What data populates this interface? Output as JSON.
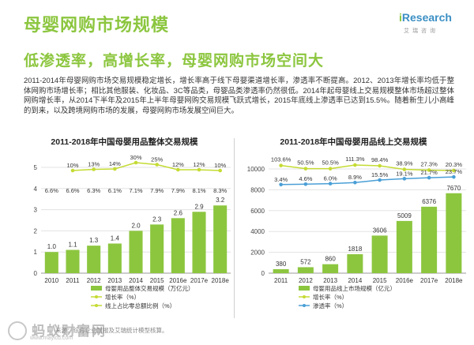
{
  "header": {
    "title": "母婴网购市场规模",
    "subtitle": "低渗透率，高增长率，母婴网购市场空间大",
    "logo_text": "Research",
    "logo_i": "i",
    "logo_sub": "艾瑞咨询"
  },
  "paragraph": "2011-2014年母婴网购市场交易规模稳定增长，增长率高于线下母婴渠道增长率，渗透率不断提高。2012、2013年增长率均低于整体网购市场增长率；相比其他服装、化妆品、3C等品类，母婴品类渗透率仍然很低。2014年起母婴线上交易规模整体市场超过整体网购增长率，从2014下半年及2015年上半年母婴网购交易规模飞跃式增长，2015年底线上渗透率已达到15.5%。随着新生儿小高峰的到来，以及跨境网购市场的发展，母婴网购市场发展空间巨大。",
  "colors": {
    "accent": "#8cc63f",
    "bar": "#8cc63f",
    "growth_line": "#c5db33",
    "penetration_line": "#4a9fd6"
  },
  "chart_data": [
    {
      "type": "bar",
      "title": "2011-2018年中国母婴用品整体交易规模",
      "categories": [
        "2010",
        "2011",
        "2012",
        "2013",
        "2014",
        "2015",
        "2016e",
        "2017e",
        "2018e"
      ],
      "ylim": [
        0,
        5
      ],
      "yticks": [
        "0",
        "1",
        "2",
        "3",
        "4",
        "5"
      ],
      "grid": true,
      "series": [
        {
          "name": "母婴用品整体交易规模（万亿元）",
          "kind": "bar",
          "values": [
            1.0,
            1.1,
            1.3,
            1.4,
            2.0,
            2.3,
            2.6,
            2.9,
            3.2
          ],
          "labels": [
            "1.0",
            "1.1",
            "1.3",
            "1.4",
            "2.0",
            "2.3",
            "2.6",
            "2.9",
            "3.2"
          ]
        },
        {
          "name": "增长率（%）",
          "kind": "line",
          "values": [
            null,
            10,
            13,
            14,
            30,
            25,
            12,
            12,
            10
          ],
          "labels": [
            "",
            "10%",
            "13%",
            "14%",
            "30%",
            "25%",
            "12%",
            "12%",
            "10%"
          ]
        },
        {
          "name": "线上占比零总额比例（%）",
          "kind": "line-labels",
          "values": [
            6.6,
            6.6,
            6.3,
            6.1,
            7.1,
            7.9,
            7.9,
            8.1,
            8.3
          ],
          "labels": [
            "6.6%",
            "6.6%",
            "6.3%",
            "6.1%",
            "7.1%",
            "7.9%",
            "7.9%",
            "8.1%",
            "8.3%"
          ]
        }
      ],
      "legend_position": "bottom"
    },
    {
      "type": "bar",
      "title": "2011-2018年中国母婴用品线上交易规模",
      "categories": [
        "2011",
        "2012",
        "2013",
        "2014",
        "2015",
        "2016e",
        "2017e",
        "2018e"
      ],
      "ylim": [
        0,
        10000
      ],
      "yticks": [
        "0",
        "2000",
        "4000",
        "6000",
        "8000",
        "10000"
      ],
      "grid": true,
      "series": [
        {
          "name": "母婴用品线上市场规模（亿元）",
          "kind": "bar",
          "values": [
            380,
            572,
            860,
            1818,
            3606,
            5009,
            6376,
            7670
          ],
          "labels": [
            "380",
            "572",
            "860",
            "1818",
            "3606",
            "5009",
            "6376",
            "7670"
          ]
        },
        {
          "name": "增长率（%）",
          "kind": "line",
          "values": [
            103.6,
            50.5,
            50.5,
            111.3,
            98.4,
            38.9,
            27.3,
            20.3
          ],
          "labels": [
            "103.6%",
            "50.5%",
            "50.5%",
            "111.3%",
            "98.4%",
            "38.9%",
            "27.3%",
            "20.3%"
          ]
        },
        {
          "name": "渗透率（%）",
          "kind": "line",
          "values": [
            3.4,
            4.6,
            6.0,
            8.9,
            15.5,
            19.1,
            21.7,
            23.7
          ],
          "labels": [
            "3.4%",
            "4.6%",
            "6.0%",
            "8.9%",
            "15.5%",
            "19.1%",
            "21.7%",
            "23.7%"
          ]
        }
      ],
      "legend_position": "bottom"
    }
  ],
  "footer": {
    "source": "来源：综合企业财报及艾瑞统计模型核算。",
    "watermark": "蚂蚁财富网",
    "watermark_url": "www.mayicd.com"
  }
}
